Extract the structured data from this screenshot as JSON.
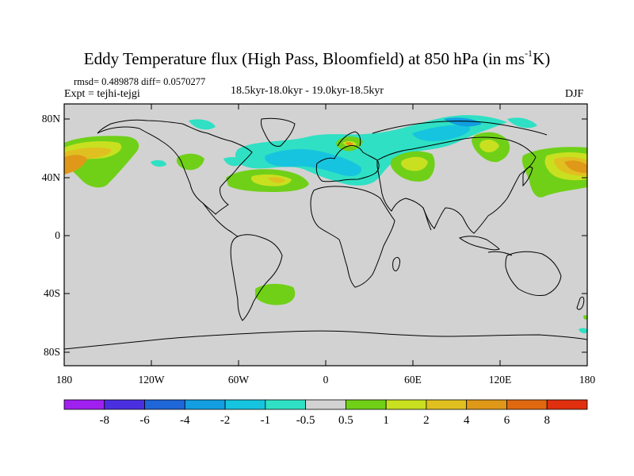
{
  "title": "Eddy Temperature flux (High Pass, Bloomfield) at 850 hPa (in ms",
  "title_sup": "-1",
  "title_tail": "K)",
  "stats": "rmsd= 0.489878 diff= 0.0570277",
  "expt": "Expt = tejhi-tejgi",
  "period": "18.5kyr-18.0kyr - 19.0kyr-18.5kyr",
  "season": "DJF",
  "y_ticks": [
    "80N",
    "40N",
    "0",
    "40S",
    "80S"
  ],
  "x_ticks": [
    "180",
    "120W",
    "60W",
    "0",
    "60E",
    "120E",
    "180"
  ],
  "colorbar": {
    "colors": [
      "#a020f0",
      "#4a2fe0",
      "#1f66d8",
      "#129ee0",
      "#16c4df",
      "#2fe0c4",
      "#d2d2d2",
      "#70d018",
      "#c8e020",
      "#e0c020",
      "#e09818",
      "#e06810",
      "#e03010"
    ],
    "labels": [
      "-8",
      "-6",
      "-4",
      "-2",
      "-1",
      "-0.5",
      "0.5",
      "1",
      "2",
      "4",
      "6",
      "8"
    ]
  },
  "colors": {
    "background": "#d2d2d2",
    "coast": "#000000"
  }
}
